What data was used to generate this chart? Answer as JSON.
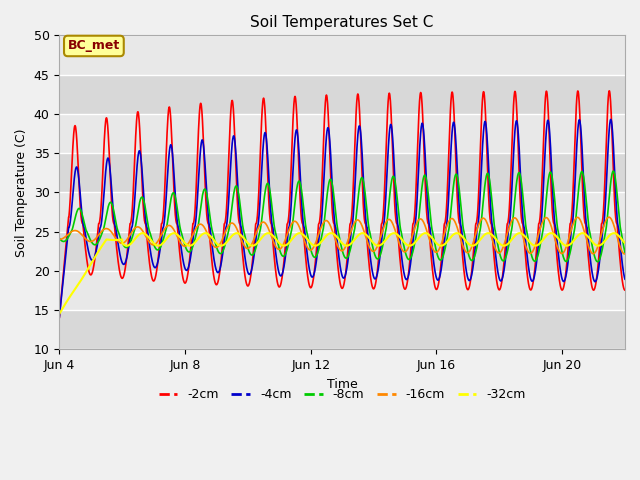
{
  "title": "Soil Temperatures Set C",
  "xlabel": "Time",
  "ylabel": "Soil Temperature (C)",
  "ylim": [
    10,
    50
  ],
  "duration_days": 18,
  "x_tick_labels": [
    "Jun 4",
    "Jun 8",
    "Jun 12",
    "Jun 16",
    "Jun 20"
  ],
  "x_tick_positions": [
    0,
    4,
    8,
    12,
    16
  ],
  "legend_labels": [
    "-2cm",
    "-4cm",
    "-8cm",
    "-16cm",
    "-32cm"
  ],
  "line_colors": [
    "#ff0000",
    "#0000cc",
    "#00cc00",
    "#ff8800",
    "#ffff00"
  ],
  "line_widths": [
    1.2,
    1.2,
    1.2,
    1.2,
    1.5
  ],
  "annotation_text": "BC_met",
  "annotation_bg": "#ffff99",
  "annotation_border": "#aa8800",
  "annotation_text_color": "#880000",
  "fig_bg": "#f0f0f0",
  "plot_bg": "#e8e8e8",
  "grid_color": "#ffffff",
  "n_points": 2000
}
